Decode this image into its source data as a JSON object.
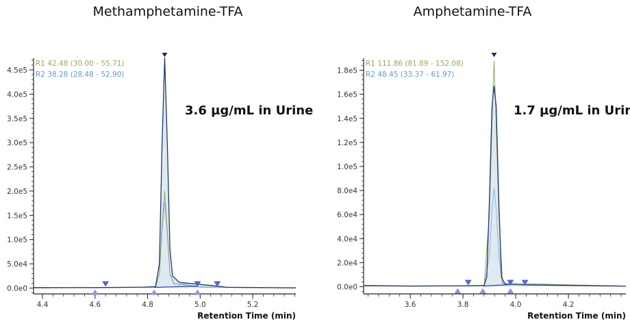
{
  "chart_data": [
    {
      "type": "line",
      "title": "Methamphetamine-TFA",
      "xlabel": "Retention Time (min)",
      "ylabel": "",
      "annotation": "3.6 µg/mL in Urine",
      "xlim": [
        4.366,
        5.364
      ],
      "ylim": [
        -12000,
        474000
      ],
      "xticks": [
        4.4,
        4.6,
        4.8,
        5.0,
        5.2
      ],
      "xtick_labels": [
        "4.4",
        "4.6",
        "4.8",
        "5.0",
        "5.2"
      ],
      "yticks": [
        0,
        50000,
        100000,
        150000,
        200000,
        250000,
        300000,
        350000,
        400000,
        450000
      ],
      "ytick_labels": [
        "0.0e0",
        "5.0e4",
        "1.0e5",
        "1.5e5",
        "2.0e5",
        "2.5e5",
        "3.0e5",
        "3.5e5",
        "4.0e5",
        "4.5e5"
      ],
      "legend": [
        {
          "text": "R1 42.48 (30.00 - 55.71)",
          "color": "#9aa85a"
        },
        {
          "text": "R2 38.28 (28.48 - 52.90)",
          "color": "#5b9be0"
        }
      ],
      "series": [
        {
          "role": "quant",
          "color": "#1f3a6e",
          "fill": "#dbe7f0",
          "points": [
            [
              4.366,
              1000
            ],
            [
              4.6,
              1000
            ],
            [
              4.78,
              2000
            ],
            [
              4.83,
              3000
            ],
            [
              4.845,
              50000
            ],
            [
              4.855,
              300000
            ],
            [
              4.865,
              475000
            ],
            [
              4.875,
              300000
            ],
            [
              4.885,
              80000
            ],
            [
              4.895,
              25000
            ],
            [
              4.92,
              12000
            ],
            [
              4.99,
              8000
            ],
            [
              5.07,
              4000
            ],
            [
              5.1,
              1500
            ],
            [
              5.364,
              500
            ]
          ]
        },
        {
          "role": "R1",
          "color": "#9aa85a",
          "points": [
            [
              4.366,
              500
            ],
            [
              4.83,
              1500
            ],
            [
              4.845,
              30000
            ],
            [
              4.855,
              130000
            ],
            [
              4.865,
              200000
            ],
            [
              4.875,
              120000
            ],
            [
              4.885,
              30000
            ],
            [
              4.9,
              9000
            ],
            [
              4.95,
              6000
            ],
            [
              5.0,
              2000
            ],
            [
              5.364,
              300
            ]
          ]
        },
        {
          "role": "R2",
          "color": "#8ab4e8",
          "points": [
            [
              4.366,
              500
            ],
            [
              4.83,
              1500
            ],
            [
              4.845,
              30000
            ],
            [
              4.855,
              120000
            ],
            [
              4.865,
              178000
            ],
            [
              4.875,
              110000
            ],
            [
              4.885,
              28000
            ],
            [
              4.9,
              8000
            ],
            [
              4.94,
              9000
            ],
            [
              4.97,
              3000
            ],
            [
              5.364,
              300
            ]
          ]
        }
      ],
      "markers_down": [
        4.865,
        4.64,
        4.99,
        5.065
      ],
      "markers_up": [
        4.6,
        4.825,
        4.99
      ]
    },
    {
      "type": "line",
      "title": "Amphetamine-TFA",
      "xlabel": "Retention Time (min)",
      "ylabel": "",
      "annotation": "1.7 µg/mL in Urine",
      "xlim": [
        3.423,
        4.418
      ],
      "ylim": [
        -6000,
        190000
      ],
      "xticks": [
        3.6,
        3.8,
        4.0,
        4.2
      ],
      "xtick_labels": [
        "3.6",
        "3.8",
        "4.0",
        "4.2"
      ],
      "yticks": [
        0,
        20000,
        40000,
        60000,
        80000,
        100000,
        120000,
        140000,
        160000,
        180000
      ],
      "ytick_labels": [
        "0.0e0",
        "2.0e4",
        "4.0e4",
        "6.0e4",
        "8.0e4",
        "1.0e5",
        "1.2e5",
        "1.4e5",
        "1.6e5",
        "1.8e5"
      ],
      "legend": [
        {
          "text": "R1 111.86 (81.89 - 152.08)",
          "color": "#9aa85a"
        },
        {
          "text": "R2 48.45 (33.37 - 61.97)",
          "color": "#5b9be0"
        }
      ],
      "series": [
        {
          "role": "quant",
          "color": "#1f3a6e",
          "fill": "#dbe7f0",
          "points": [
            [
              3.423,
              1000
            ],
            [
              3.6,
              500
            ],
            [
              3.8,
              800
            ],
            [
              3.88,
              1000
            ],
            [
              3.89,
              8000
            ],
            [
              3.9,
              70000
            ],
            [
              3.91,
              150000
            ],
            [
              3.918,
              167000
            ],
            [
              3.926,
              150000
            ],
            [
              3.936,
              70000
            ],
            [
              3.946,
              8000
            ],
            [
              3.96,
              2000
            ],
            [
              4.03,
              1500
            ],
            [
              4.418,
              500
            ]
          ]
        },
        {
          "role": "R1",
          "color": "#9aa85a",
          "points": [
            [
              3.423,
              600
            ],
            [
              3.88,
              800
            ],
            [
              3.9,
              60000
            ],
            [
              3.912,
              150000
            ],
            [
              3.918,
              188000
            ],
            [
              3.924,
              150000
            ],
            [
              3.936,
              60000
            ],
            [
              3.95,
              3000
            ],
            [
              4.418,
              400
            ]
          ]
        },
        {
          "role": "R2",
          "color": "#8ab4e8",
          "points": [
            [
              3.423,
              600
            ],
            [
              3.88,
              800
            ],
            [
              3.9,
              25000
            ],
            [
              3.91,
              65000
            ],
            [
              3.918,
              82000
            ],
            [
              3.926,
              65000
            ],
            [
              3.936,
              25000
            ],
            [
              3.95,
              2000
            ],
            [
              4.2,
              1500
            ],
            [
              4.418,
              400
            ]
          ]
        }
      ],
      "markers_down": [
        3.918,
        3.82,
        3.98,
        4.035
      ],
      "markers_up": [
        3.78,
        3.875,
        3.98
      ]
    }
  ]
}
